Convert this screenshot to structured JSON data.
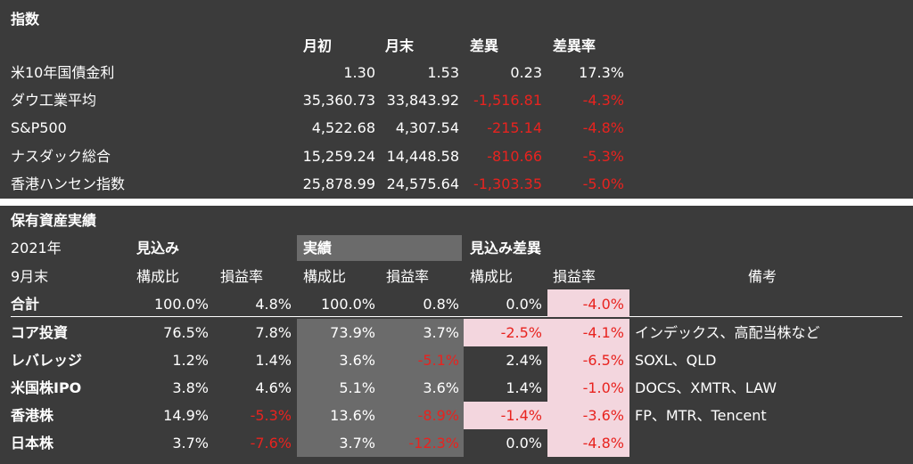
{
  "indices": {
    "title": "指数",
    "headers": [
      "月初",
      "月末",
      "差異",
      "差異率"
    ],
    "rows": [
      {
        "name": "米10年国債金利",
        "values": [
          "1.30",
          "1.53",
          "0.23",
          "17.3%"
        ]
      },
      {
        "name": "ダウ工業平均",
        "values": [
          "35,360.73",
          "33,843.92",
          "-1,516.81",
          "-4.3%"
        ]
      },
      {
        "name": "S&P500",
        "values": [
          "4,522.68",
          "4,307.54",
          "-215.14",
          "-4.8%"
        ]
      },
      {
        "name": "ナスダック総合",
        "values": [
          "15,259.24",
          "14,448.58",
          "-810.66",
          "-5.3%"
        ]
      },
      {
        "name": "香港ハンセン指数",
        "values": [
          "25,878.99",
          "24,575.64",
          "-1,303.35",
          "-5.0%"
        ]
      }
    ]
  },
  "holdings": {
    "title": "保有資産実績",
    "year": "2021年",
    "groups": [
      "見込み",
      "実績",
      "見込み差異"
    ],
    "period": "9月末",
    "subheaders": [
      "構成比",
      "損益率",
      "構成比",
      "損益率",
      "構成比",
      "損益率"
    ],
    "note_header": "備考",
    "total": {
      "name": "合計",
      "values": [
        "100.0%",
        "4.8%",
        "100.0%",
        "0.8%",
        "0.0%",
        "-4.0%"
      ]
    },
    "rows": [
      {
        "name": "コア投資",
        "values": [
          "76.5%",
          "7.8%",
          "73.9%",
          "3.7%",
          "-2.5%",
          "-4.1%"
        ],
        "note": "インデックス、高配当株など"
      },
      {
        "name": "レバレッジ",
        "values": [
          "1.2%",
          "1.4%",
          "3.6%",
          "-5.1%",
          "2.4%",
          "-6.5%"
        ],
        "note": "SOXL、QLD"
      },
      {
        "name": "米国株IPO",
        "values": [
          "3.8%",
          "4.6%",
          "5.1%",
          "3.6%",
          "1.4%",
          "-1.0%"
        ],
        "note": "DOCS、XMTR、LAW"
      },
      {
        "name": "香港株",
        "values": [
          "14.9%",
          "-5.3%",
          "13.6%",
          "-8.9%",
          "-1.4%",
          "-3.6%"
        ],
        "note": "FP、MTR、Tencent"
      },
      {
        "name": "日本株",
        "values": [
          "3.7%",
          "-7.6%",
          "3.7%",
          "-12.3%",
          "0.0%",
          "-4.8%"
        ],
        "note": ""
      }
    ]
  }
}
